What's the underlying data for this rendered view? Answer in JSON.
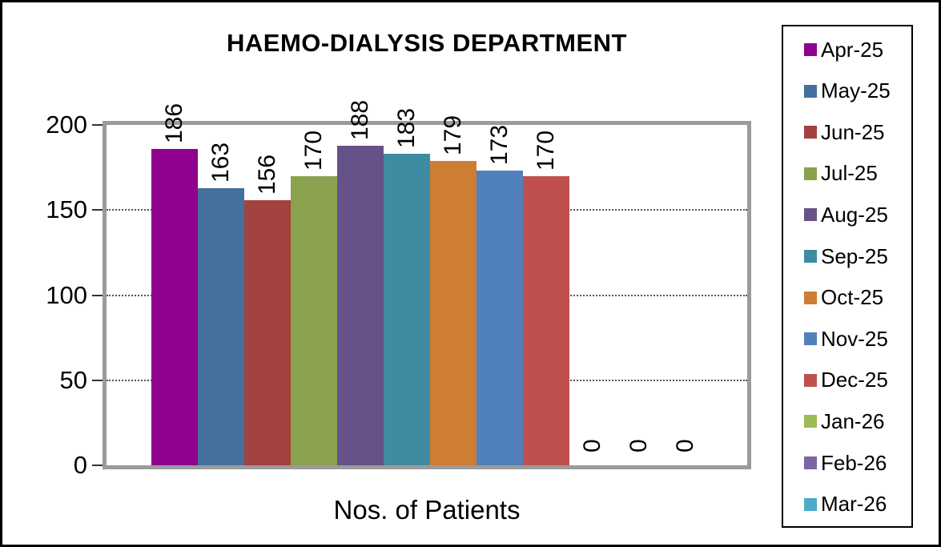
{
  "title": "HAEMO-DIALYSIS DEPARTMENT",
  "x_axis_label": "Nos. of Patients",
  "chart_data": {
    "type": "bar",
    "title": "HAEMO-DIALYSIS DEPARTMENT",
    "xlabel": "Nos. of Patients",
    "ylabel": "",
    "categories": [
      "Apr-25",
      "May-25",
      "Jun-25",
      "Jul-25",
      "Aug-25",
      "Sep-25",
      "Oct-25",
      "Nov-25",
      "Dec-25",
      "Jan-26",
      "Feb-26",
      "Mar-26"
    ],
    "values": [
      186,
      163,
      156,
      170,
      188,
      183,
      179,
      173,
      170,
      0,
      0,
      0
    ],
    "colors": [
      "#8F018F",
      "#44709E",
      "#A2423E",
      "#8AA14E",
      "#675189",
      "#3D8CA2",
      "#CE7D35",
      "#5081BD",
      "#BF504D",
      "#9BBB59",
      "#8064A2",
      "#4BACC6"
    ],
    "data_labels": [
      "186",
      "163",
      "156",
      "170",
      "188",
      "183",
      "179",
      "173",
      "170",
      "0",
      "0",
      "0"
    ],
    "data_label_rotation_deg": 90,
    "ylim": [
      0,
      200
    ],
    "yticks": [
      "0",
      "50",
      "100",
      "150",
      "200"
    ],
    "grid": "horizontal-dotted",
    "legend_position": "right",
    "legend_entries": [
      "Apr-25",
      "May-25",
      "Jun-25",
      "Jul-25",
      "Aug-25",
      "Sep-25",
      "Oct-25",
      "Nov-25",
      "Dec-25",
      "Jan-26",
      "Feb-26",
      "Mar-26"
    ]
  },
  "frame": {
    "plot_border_color": "#9b9b9b",
    "outer_border_color": "#000000"
  }
}
